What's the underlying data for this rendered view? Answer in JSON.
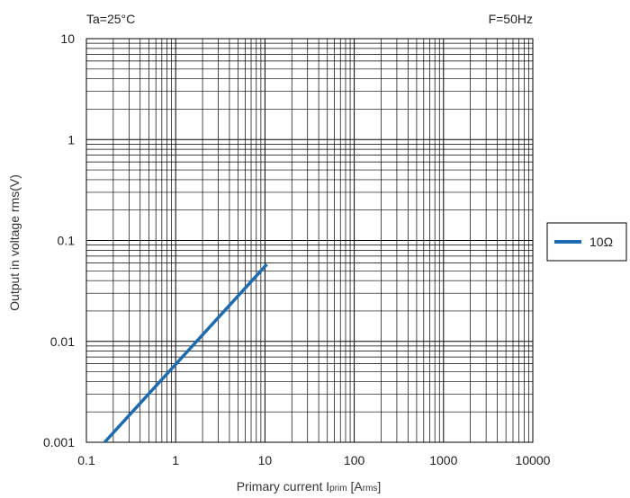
{
  "chart_data": {
    "type": "line",
    "title": "",
    "conditions": {
      "left": "Ta=25°C",
      "right": "F=50Hz"
    },
    "xlabel": {
      "main": "Primary current I",
      "sub": "prim",
      "open": " [A",
      "unit_sub": "rms",
      "close": "]"
    },
    "ylabel": "Output in voltage rms(V)",
    "x_scale": "log",
    "y_scale": "log",
    "xlim": [
      0.1,
      10000
    ],
    "ylim": [
      0.001,
      10
    ],
    "x_ticks": [
      0.1,
      1,
      10,
      100,
      1000,
      10000
    ],
    "x_tick_labels": [
      "0.1",
      "1",
      "10",
      "100",
      "1000",
      "10000"
    ],
    "y_ticks": [
      0.001,
      0.01,
      0.1,
      1,
      10
    ],
    "y_tick_labels": [
      "0.001",
      "0.01",
      "0.1",
      "1",
      "10"
    ],
    "grid": true,
    "legend_position": "right",
    "series": [
      {
        "name": "10Ω",
        "color": "#1f6bb0",
        "x": [
          0.16,
          10.5
        ],
        "y": [
          0.001,
          0.058
        ]
      }
    ]
  }
}
